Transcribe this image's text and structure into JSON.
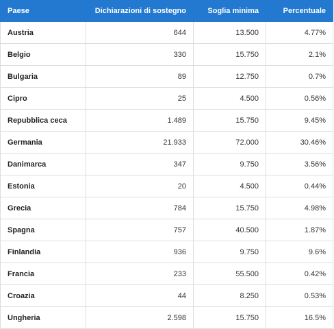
{
  "table": {
    "header": [
      "Paese",
      "Dichiarazioni di sostegno",
      "Soglia minima",
      "Percentuale"
    ],
    "rows": [
      [
        "Austria",
        "644",
        "13.500",
        "4.77%"
      ],
      [
        "Belgio",
        "330",
        "15.750",
        "2.1%"
      ],
      [
        "Bulgaria",
        "89",
        "12.750",
        "0.7%"
      ],
      [
        "Cipro",
        "25",
        "4.500",
        "0.56%"
      ],
      [
        "Repubblica ceca",
        "1.489",
        "15.750",
        "9.45%"
      ],
      [
        "Germania",
        "21.933",
        "72.000",
        "30.46%"
      ],
      [
        "Danimarca",
        "347",
        "9.750",
        "3.56%"
      ],
      [
        "Estonia",
        "20",
        "4.500",
        "0.44%"
      ],
      [
        "Grecia",
        "784",
        "15.750",
        "4.98%"
      ],
      [
        "Spagna",
        "757",
        "40.500",
        "1.87%"
      ],
      [
        "Finlandia",
        "936",
        "9.750",
        "9.6%"
      ],
      [
        "Francia",
        "233",
        "55.500",
        "0.42%"
      ],
      [
        "Croazia",
        "44",
        "8.250",
        "0.53%"
      ],
      [
        "Ungheria",
        "2.598",
        "15.750",
        "16.5%"
      ]
    ]
  }
}
